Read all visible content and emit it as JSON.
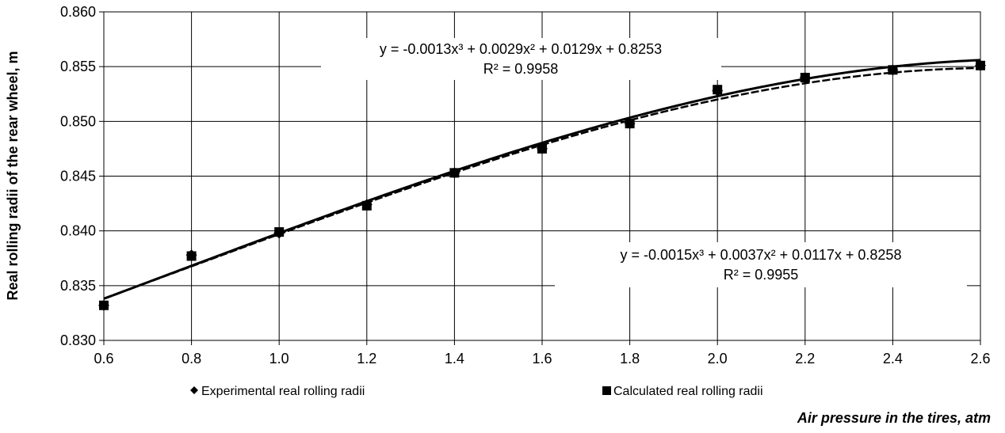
{
  "chart_data": {
    "type": "scatter",
    "xlabel": "Air pressure in the tires, atm",
    "ylabel": "Real rolling radii of the rear wheel, m",
    "xlim": [
      0.6,
      2.6
    ],
    "ylim": [
      0.83,
      0.86
    ],
    "x_ticks": [
      "0.6",
      "0.8",
      "1.0",
      "1.2",
      "1.4",
      "1.6",
      "1.8",
      "2.0",
      "2.2",
      "2.4",
      "2.6"
    ],
    "y_ticks": [
      "0.830",
      "0.835",
      "0.840",
      "0.845",
      "0.850",
      "0.855",
      "0.860"
    ],
    "grid": true,
    "legend_position": "bottom",
    "series": [
      {
        "name": "Experimental real rolling radii",
        "marker": "diamond",
        "x": [
          0.6,
          0.8,
          1.0,
          1.2,
          1.4,
          1.6,
          1.8,
          2.0,
          2.2,
          2.4,
          2.6
        ],
        "y": [
          0.8332,
          0.8378,
          0.8398,
          0.8424,
          0.8453,
          0.8475,
          0.8498,
          0.8528,
          0.854,
          0.8547,
          0.8551
        ],
        "trendline": {
          "equation": "y = -0.0013x³ + 0.0029x² + 0.0129x + 0.8253",
          "r2": "R² = 0.9958",
          "coefficients": [
            -0.0013,
            0.0029,
            0.0129,
            0.8253
          ]
        }
      },
      {
        "name": "Calculated real rolling radii",
        "marker": "square",
        "x": [
          0.6,
          0.8,
          1.0,
          1.2,
          1.4,
          1.6,
          1.8,
          2.0,
          2.2,
          2.4,
          2.6
        ],
        "y": [
          0.8332,
          0.8377,
          0.8399,
          0.8423,
          0.8453,
          0.8475,
          0.8498,
          0.8529,
          0.854,
          0.8547,
          0.8551
        ],
        "trendline": {
          "equation": "y = -0.0015x³ + 0.0037x² + 0.0117x + 0.8258",
          "r2": "R² = 0.9955",
          "coefficients": [
            -0.0015,
            0.0037,
            0.0117,
            0.8258
          ]
        }
      }
    ]
  }
}
